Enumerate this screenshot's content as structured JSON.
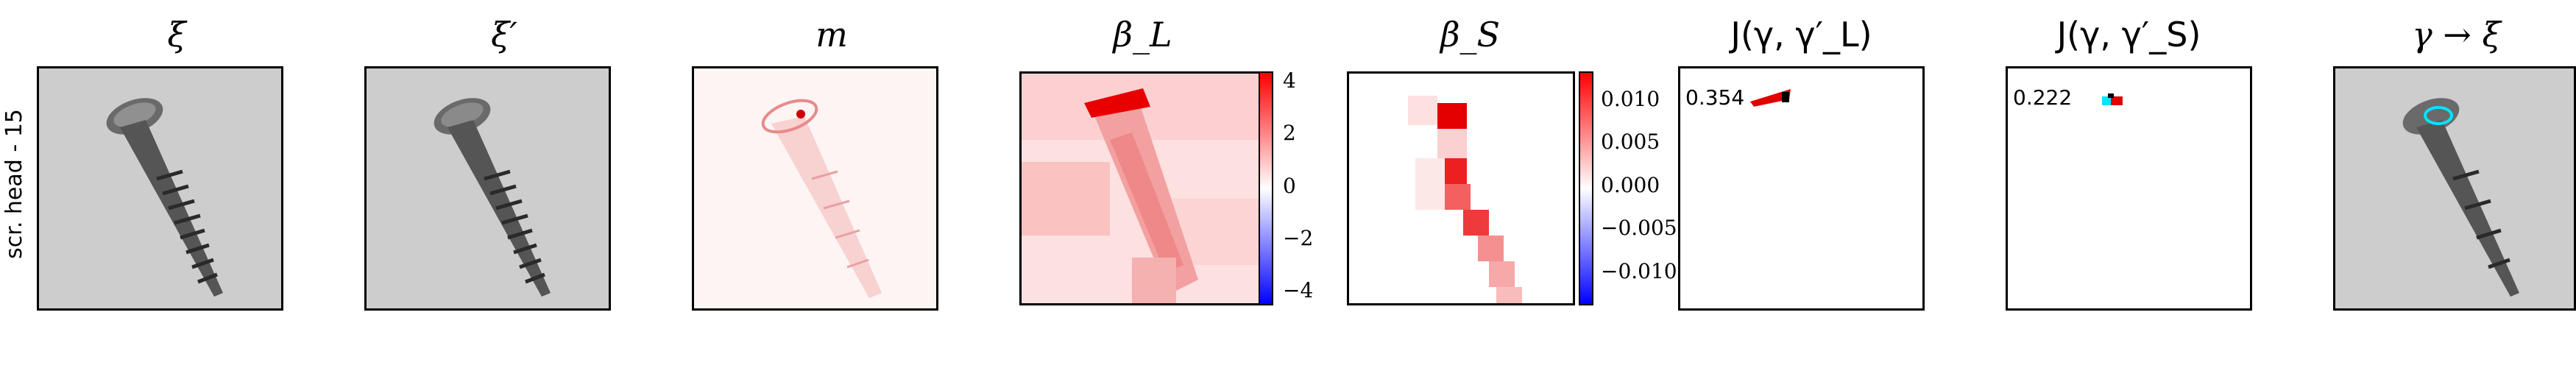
{
  "row_label": "scr. head - 15",
  "panels": {
    "p1": {
      "title": "ξ"
    },
    "p2": {
      "title": "ξ′"
    },
    "p3": {
      "title": "m"
    },
    "p4": {
      "title": "β_L",
      "colorbar_ticks": [
        "4",
        "2",
        "0",
        "−2",
        "−4"
      ]
    },
    "p5": {
      "title": "β_S",
      "colorbar_ticks": [
        "0.010",
        "0.005",
        "0.000",
        "−0.005",
        "−0.010"
      ]
    },
    "p6": {
      "title": "J(γ, γ′_L)",
      "value": "0.354"
    },
    "p7": {
      "title": "J(γ, γ′_S)",
      "value": "0.222"
    },
    "p8": {
      "title": "γ → ξ"
    }
  },
  "colors": {
    "positive": "#e00000",
    "negative": "#0000d0",
    "overlay": "#00e5ff"
  }
}
